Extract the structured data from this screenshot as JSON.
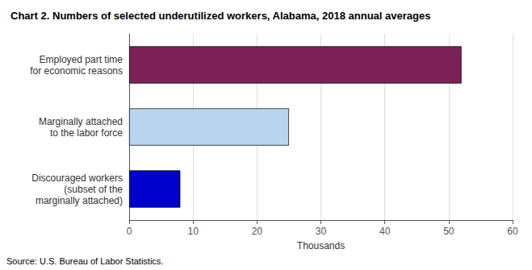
{
  "chart_data": {
    "type": "bar",
    "orientation": "horizontal",
    "title": "Chart 2. Numbers of selected underutilized workers, Alabama, 2018 annual averages",
    "categories": [
      "Discouraged workers\n(subset of the\nmarginally attached)",
      "Marginally attached\nto the labor force",
      "Employed part time\nfor economic reasons"
    ],
    "values": [
      8,
      25,
      52
    ],
    "colors": [
      "#0000cc",
      "#b8d4ee",
      "#7b2155"
    ],
    "xlabel": "Thousands",
    "xlim": [
      0,
      60
    ],
    "xticks": [
      0,
      10,
      20,
      30,
      40,
      50,
      60
    ],
    "grid": true,
    "source": "Source: U.S. Bureau of Labor Statistics."
  }
}
